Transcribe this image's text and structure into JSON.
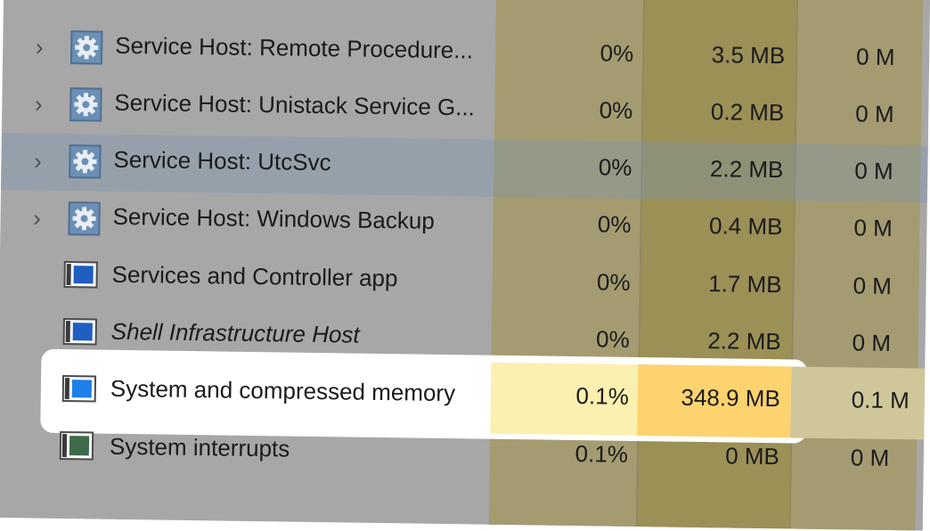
{
  "processes": [
    {
      "name": "Service Host: Remote Procedure...",
      "cpu": "0%",
      "memory": "3.5 MB",
      "disk": "0 M",
      "expandable": true,
      "icon": "gear-icon"
    },
    {
      "name": "Service Host: Unistack Service G...",
      "cpu": "0%",
      "memory": "0.2 MB",
      "disk": "0 M",
      "expandable": true,
      "icon": "gear-icon"
    },
    {
      "name": "Service Host: UtcSvc",
      "cpu": "0%",
      "memory": "2.2 MB",
      "disk": "0 M",
      "expandable": true,
      "icon": "gear-icon"
    },
    {
      "name": "Service Host: Windows Backup",
      "cpu": "0%",
      "memory": "0.4 MB",
      "disk": "0 M",
      "expandable": true,
      "icon": "gear-icon"
    },
    {
      "name": "Services and Controller app",
      "cpu": "0%",
      "memory": "1.7 MB",
      "disk": "0 M",
      "expandable": false,
      "icon": "app-window-icon"
    },
    {
      "name": "Shell Infrastructure Host",
      "cpu": "0%",
      "memory": "2.2 MB",
      "disk": "0 M",
      "expandable": false,
      "icon": "app-window-icon"
    },
    {
      "name": "System and compressed memory",
      "cpu": "0.1%",
      "memory": "348.9 MB",
      "disk": "0.1 M",
      "expandable": false,
      "icon": "app-window-icon"
    },
    {
      "name": "System interrupts",
      "cpu": "0.1%",
      "memory": "0 MB",
      "disk": "0 M",
      "expandable": false,
      "icon": "app-window-icon"
    }
  ],
  "expand_glyph": "›",
  "colors": {
    "dimmed_background": "#a7a7a7",
    "cpu_column": "#a49b71",
    "memory_column": "#9b9056",
    "highlight_cpu": "#fbf0b0",
    "highlight_memory": "#fcd36f",
    "hover_row": "#9aa8b6"
  },
  "highlighted_process": "System and compressed memory"
}
